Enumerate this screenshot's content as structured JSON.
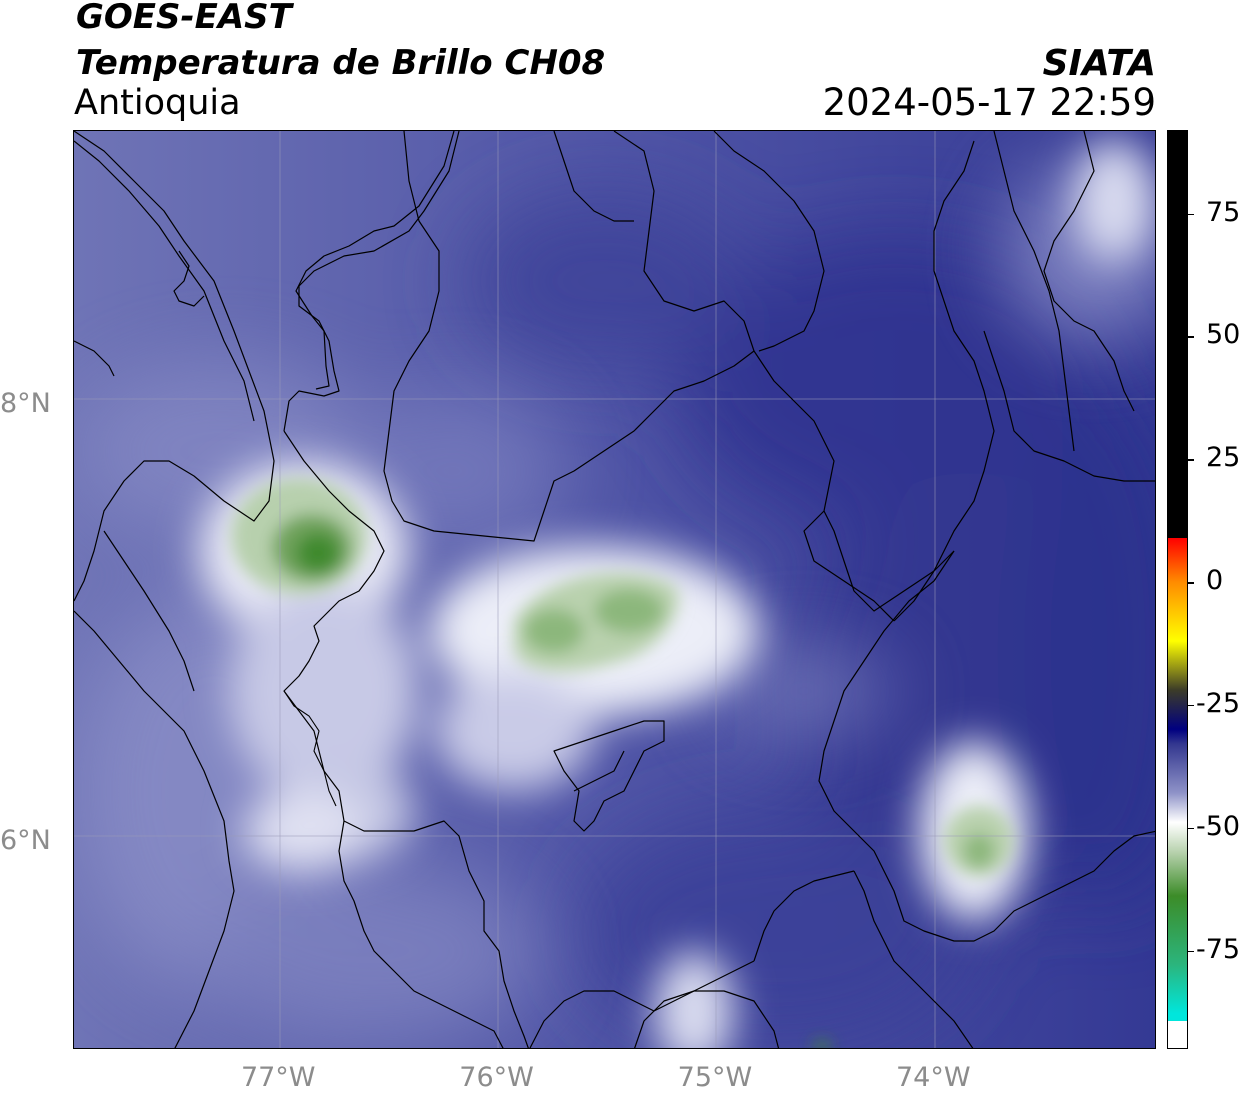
{
  "header": {
    "satellite": "GOES-EAST",
    "product": "Temperatura de Brillo CH08",
    "region": "Antioquia",
    "agency": "SIATA",
    "datetime": "2024-05-17 22:59"
  },
  "map": {
    "lon_range": [
      -77.94,
      -72.98
    ],
    "lat_range": [
      5.05,
      9.25
    ],
    "lon_ticks": [
      {
        "value": -77,
        "label": "77°W"
      },
      {
        "value": -76,
        "label": "76°W"
      },
      {
        "value": -75,
        "label": "75°W"
      },
      {
        "value": -74,
        "label": "74°W"
      }
    ],
    "lat_ticks": [
      {
        "value": 8,
        "label": "8°N"
      },
      {
        "value": 6,
        "label": "6°N"
      }
    ],
    "features": [
      {
        "name": "cold-cloud-west",
        "lon": -76.85,
        "lat": 7.3,
        "min_temp": -66
      },
      {
        "name": "cold-cloud-center",
        "lon": -75.65,
        "lat": 7.0,
        "min_temp": -60
      },
      {
        "name": "cold-cloud-east",
        "lon": -73.8,
        "lat": 5.95,
        "min_temp": -60
      }
    ]
  },
  "colorbar": {
    "range": [
      -95,
      92
    ],
    "ticks": [
      {
        "value": 75,
        "label": "75"
      },
      {
        "value": 50,
        "label": "50"
      },
      {
        "value": 25,
        "label": "25"
      },
      {
        "value": 0,
        "label": "0"
      },
      {
        "value": -25,
        "label": "-25"
      },
      {
        "value": -50,
        "label": "-50"
      },
      {
        "value": -75,
        "label": "-75"
      }
    ],
    "colors": {
      "warm": "#000000",
      "red": "#ff0000",
      "orange": "#ff8c00",
      "yellow": "#ffff00",
      "olive": "#3c3c28",
      "navy": "#000080",
      "blue": "#33378f",
      "white": "#ffffff",
      "green": "#3c8c28",
      "cyan": "#00e6dc"
    }
  }
}
